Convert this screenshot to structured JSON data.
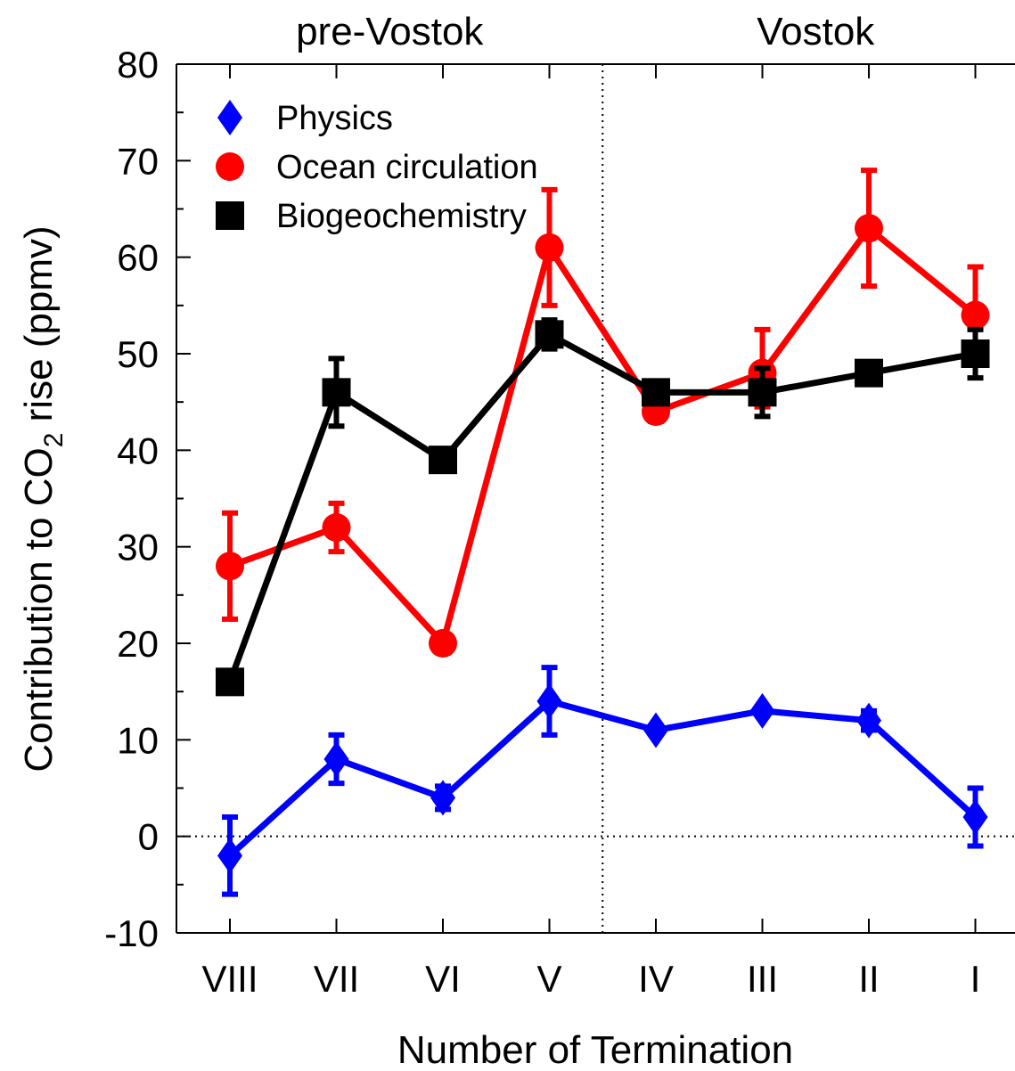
{
  "chart_data": {
    "type": "line",
    "xlabel": "Number of Termination",
    "ylabel_prefix": "Contribution to CO",
    "ylabel_subscript": "2",
    "ylabel_suffix": " rise (ppmv)",
    "ylim": [
      -10,
      80
    ],
    "yticks": [
      -10,
      0,
      10,
      20,
      30,
      40,
      50,
      60,
      70,
      80
    ],
    "y_minor_step": 5,
    "categories": [
      "VIII",
      "VII",
      "VI",
      "V",
      "IV",
      "III",
      "II",
      "I"
    ],
    "regions": [
      {
        "label": "pre-Vostok",
        "from": 0,
        "to": 3
      },
      {
        "label": "Vostok",
        "from": 4,
        "to": 7
      }
    ],
    "legend_position": "top-left",
    "series": [
      {
        "name": "Physics",
        "color": "#0000ff",
        "marker": "diamond",
        "values": [
          -2,
          8,
          4,
          14,
          11,
          13,
          12,
          2
        ],
        "err_low": [
          -6,
          5.5,
          2.8,
          10.5,
          11,
          13,
          11,
          -1
        ],
        "err_high": [
          2,
          10.5,
          5.2,
          17.5,
          11,
          13,
          13,
          5
        ]
      },
      {
        "name": "Ocean circulation",
        "color": "#ff0000",
        "marker": "circle",
        "values": [
          28,
          32,
          20,
          61,
          44,
          48,
          63,
          54
        ],
        "err_low": [
          22.5,
          29.5,
          20,
          55,
          43,
          44.5,
          57,
          49
        ],
        "err_high": [
          33.5,
          34.5,
          20,
          67,
          45,
          52.5,
          69,
          59
        ]
      },
      {
        "name": "Biogeochemistry",
        "color": "#000000",
        "marker": "square",
        "values": [
          16,
          46,
          39,
          52,
          46,
          46,
          48,
          50
        ],
        "err_low": [
          16,
          42.5,
          39,
          50.5,
          46,
          43.5,
          48,
          47.5
        ],
        "err_high": [
          16,
          49.5,
          39,
          53.5,
          46,
          48.5,
          48,
          52.5
        ]
      }
    ]
  }
}
